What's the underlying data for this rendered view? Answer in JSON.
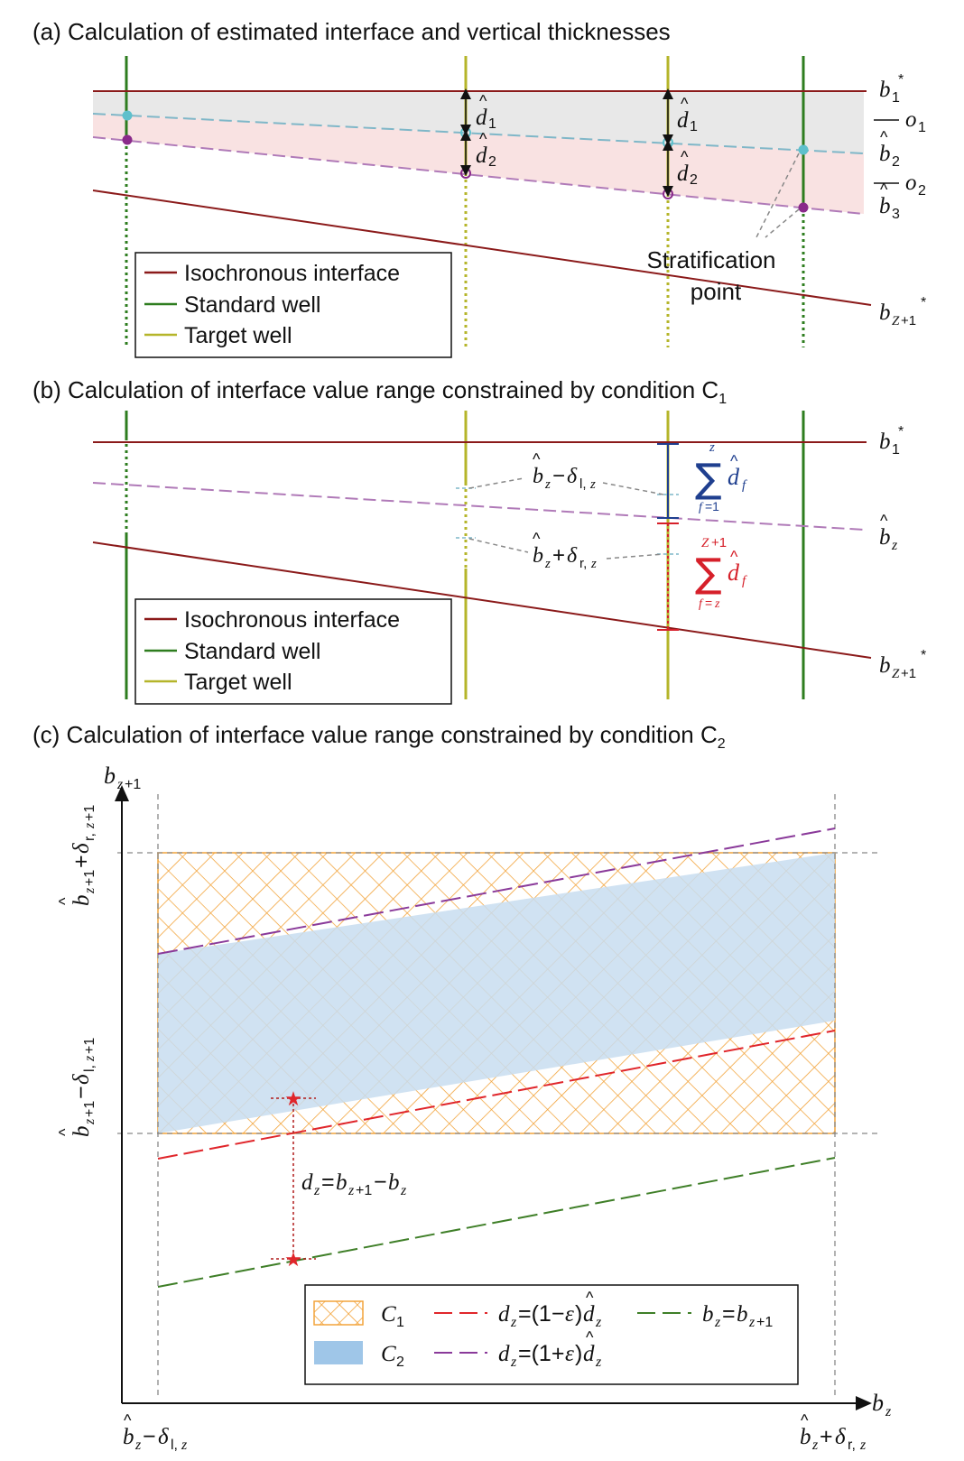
{
  "panel_a": {
    "title": "(a) Calculation of estimated interface and vertical thicknesses",
    "stratification_label_line1": "Stratification",
    "stratification_label_line2": "point",
    "legend": [
      "Isochronous interface",
      "Standard well",
      "Target well"
    ],
    "labels": {
      "b1_star": "b",
      "o1": "o",
      "o2": "o",
      "b2": "b",
      "b3": "b",
      "bZ1_star": "b",
      "d1": "d",
      "d2": "d"
    }
  },
  "panel_b": {
    "title": "(b) Calculation of interface value range constrained by condition C",
    "title_sub": "1",
    "legend": [
      "Isochronous interface",
      "Standard well",
      "Target well"
    ],
    "labels": {
      "bz_minus": "b",
      "bz_plus": "b",
      "sum_upper_var": "d",
      "sum_lower_var": "d",
      "b1_star": "b",
      "bz": "b",
      "bZ1_star": "b"
    }
  },
  "panel_c": {
    "title": "(c) Calculation of interface value range constrained by condition C",
    "title_sub": "2",
    "y_axis_label": "b",
    "x_axis_label": "b",
    "dz_label": "d",
    "legend": {
      "c1": "C",
      "c2": "C",
      "red_line": "d",
      "purple_line": "d",
      "green_line": "b"
    }
  },
  "colors": {
    "interface": "#8b1a1a",
    "standard_well": "#2e7d1f",
    "target_well": "#b5b52a",
    "cyan_dash": "#7fb7c8",
    "purple_dash": "#b07ab8",
    "grey_fill": "#e8e8e8",
    "pink_fill": "#f9e2e2",
    "c1_hatch": "#f2a33a",
    "c2_fill": "#c8ddf0",
    "red_dash": "#e0262b",
    "purple_line": "#8a3a9a",
    "green_dash": "#3f7f28",
    "blue_sum": "#1f3f8f",
    "red_sum": "#d6202a"
  }
}
